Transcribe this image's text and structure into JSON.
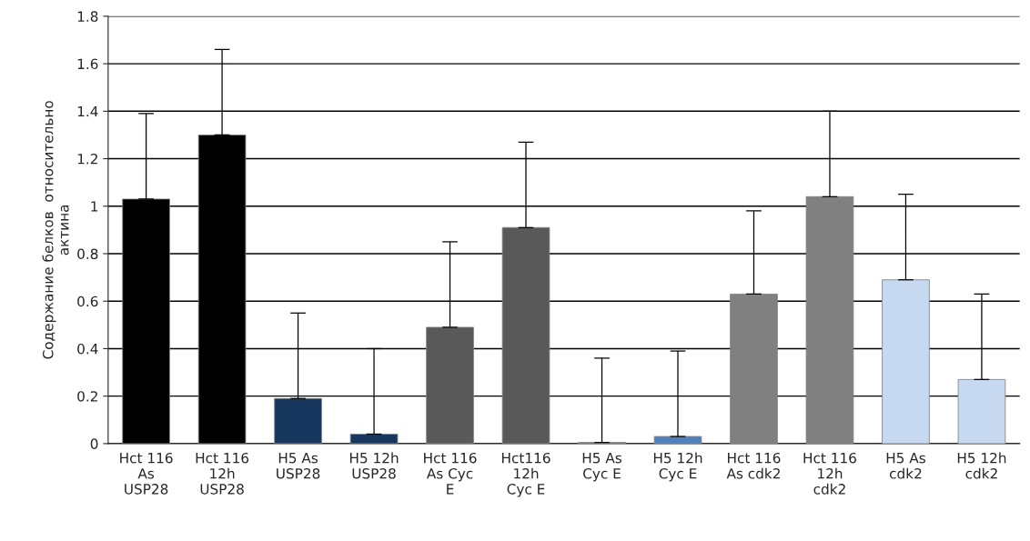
{
  "chart_data": {
    "type": "bar",
    "ylabel": "Содержание белков  относительно\nактина",
    "categories": [
      "Hct 116\nAs\nUSP28",
      "Hct 116\n12h\nUSP28",
      "H5 As\nUSP28",
      "H5 12h\nUSP28",
      "Hct 116\nAs Cyc\nE",
      "Hct116\n12h\nCyc E",
      "H5 As\nCyc E",
      "H5 12h\nCyc E",
      "Hct 116\nAs cdk2",
      "Hct 116\n12h\ncdk2",
      "H5 As\ncdk2",
      "H5 12h\ncdk2"
    ],
    "values": [
      1.03,
      1.3,
      0.19,
      0.04,
      0.49,
      0.91,
      0.005,
      0.03,
      0.63,
      1.04,
      0.69,
      0.27
    ],
    "colors": [
      "#000000",
      "#000000",
      "#17375e",
      "#17375e",
      "#595959",
      "#595959",
      "#4f81bd",
      "#4f81bd",
      "#808080",
      "#808080",
      "#c6d9f1",
      "#c6d9f1"
    ],
    "errors": [
      [
        1.03,
        1.39
      ],
      [
        1.3,
        1.66
      ],
      [
        0.19,
        0.55
      ],
      [
        0.04,
        0.4
      ],
      [
        0.49,
        0.85
      ],
      [
        0.91,
        1.27
      ],
      [
        0.005,
        0.36
      ],
      [
        0.03,
        0.39
      ],
      [
        0.63,
        0.98
      ],
      [
        1.04,
        1.4
      ],
      [
        0.69,
        1.05
      ],
      [
        0.27,
        0.63
      ]
    ],
    "ylim": [
      0,
      1.8
    ],
    "yticks": [
      0,
      0.2,
      0.4,
      0.6,
      0.8,
      1,
      1.2,
      1.4,
      1.6,
      1.8
    ],
    "grid": "y"
  }
}
